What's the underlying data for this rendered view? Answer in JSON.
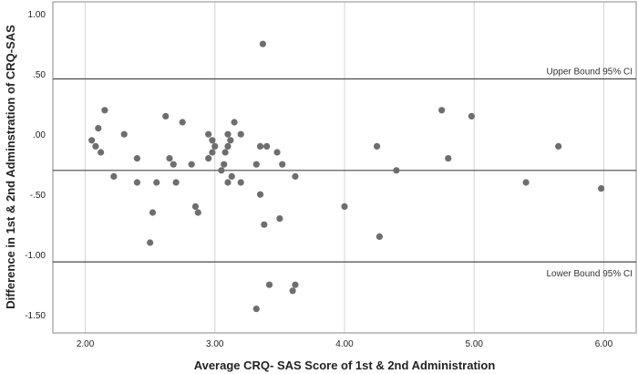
{
  "chart_data": {
    "type": "scatter",
    "xlabel": "Average CRQ- SAS Score of 1st & 2nd Administration",
    "ylabel": "Difference in 1st & 2nd Adminstration of CRQ-SAS",
    "xlim": [
      1.75,
      6.25
    ],
    "ylim": [
      -1.65,
      1.1
    ],
    "x_ticks": [
      2,
      3,
      4,
      5,
      6
    ],
    "x_tick_labels": [
      "2.00",
      "3.00",
      "4.00",
      "5.00",
      "6.00"
    ],
    "y_ticks": [
      1,
      0.5,
      0,
      -0.5,
      -1,
      -1.5
    ],
    "y_tick_labels": [
      "1.00",
      ".50",
      ".00",
      "-.50",
      "-1.00",
      "-1.50"
    ],
    "vertical_grid": true,
    "reference_lines": [
      {
        "y": 0.46,
        "label": "Upper Bound 95% CI"
      },
      {
        "y": -0.3,
        "label": ""
      },
      {
        "y": -1.06,
        "label": "Lower Bound 95% CI"
      }
    ],
    "points": [
      {
        "x": 2.05,
        "y": -0.05
      },
      {
        "x": 2.08,
        "y": -0.1
      },
      {
        "x": 2.1,
        "y": 0.05
      },
      {
        "x": 2.12,
        "y": -0.15
      },
      {
        "x": 2.15,
        "y": 0.2
      },
      {
        "x": 2.22,
        "y": -0.35
      },
      {
        "x": 2.3,
        "y": 0.0
      },
      {
        "x": 2.4,
        "y": -0.2
      },
      {
        "x": 2.4,
        "y": -0.4
      },
      {
        "x": 2.5,
        "y": -0.9
      },
      {
        "x": 2.52,
        "y": -0.65
      },
      {
        "x": 2.55,
        "y": -0.4
      },
      {
        "x": 2.62,
        "y": 0.15
      },
      {
        "x": 2.65,
        "y": -0.2
      },
      {
        "x": 2.68,
        "y": -0.25
      },
      {
        "x": 2.7,
        "y": -0.4
      },
      {
        "x": 2.75,
        "y": 0.1
      },
      {
        "x": 2.82,
        "y": -0.25
      },
      {
        "x": 2.85,
        "y": -0.6
      },
      {
        "x": 2.87,
        "y": -0.65
      },
      {
        "x": 2.95,
        "y": -0.2
      },
      {
        "x": 2.95,
        "y": 0.0
      },
      {
        "x": 2.98,
        "y": -0.05
      },
      {
        "x": 2.98,
        "y": -0.15
      },
      {
        "x": 3.0,
        "y": -0.1
      },
      {
        "x": 3.05,
        "y": -0.3
      },
      {
        "x": 3.07,
        "y": -0.25
      },
      {
        "x": 3.08,
        "y": -0.15
      },
      {
        "x": 3.1,
        "y": -0.4
      },
      {
        "x": 3.1,
        "y": 0.0
      },
      {
        "x": 3.1,
        "y": -0.1
      },
      {
        "x": 3.12,
        "y": -0.05
      },
      {
        "x": 3.13,
        "y": -0.35
      },
      {
        "x": 3.15,
        "y": 0.1
      },
      {
        "x": 3.2,
        "y": 0.0
      },
      {
        "x": 3.2,
        "y": -0.4
      },
      {
        "x": 3.32,
        "y": -0.25
      },
      {
        "x": 3.32,
        "y": -1.45
      },
      {
        "x": 3.35,
        "y": -0.1
      },
      {
        "x": 3.35,
        "y": -0.5
      },
      {
        "x": 3.37,
        "y": 0.75
      },
      {
        "x": 3.38,
        "y": -0.75
      },
      {
        "x": 3.4,
        "y": -0.1
      },
      {
        "x": 3.42,
        "y": -1.25
      },
      {
        "x": 3.48,
        "y": -0.15
      },
      {
        "x": 3.5,
        "y": -0.7
      },
      {
        "x": 3.52,
        "y": -0.25
      },
      {
        "x": 3.6,
        "y": -1.3
      },
      {
        "x": 3.62,
        "y": -1.25
      },
      {
        "x": 3.62,
        "y": -0.35
      },
      {
        "x": 4.0,
        "y": -0.6
      },
      {
        "x": 4.25,
        "y": -0.1
      },
      {
        "x": 4.27,
        "y": -0.85
      },
      {
        "x": 4.4,
        "y": -0.3
      },
      {
        "x": 4.75,
        "y": 0.2
      },
      {
        "x": 4.8,
        "y": -0.2
      },
      {
        "x": 4.98,
        "y": 0.15
      },
      {
        "x": 5.4,
        "y": -0.4
      },
      {
        "x": 5.65,
        "y": -0.1
      },
      {
        "x": 5.98,
        "y": -0.45
      }
    ],
    "colors": {
      "point": "#6e6e6e",
      "reference_line": "#4a4a4a",
      "grid": "#d4d4d4",
      "frame": "#8a8a8a"
    }
  }
}
